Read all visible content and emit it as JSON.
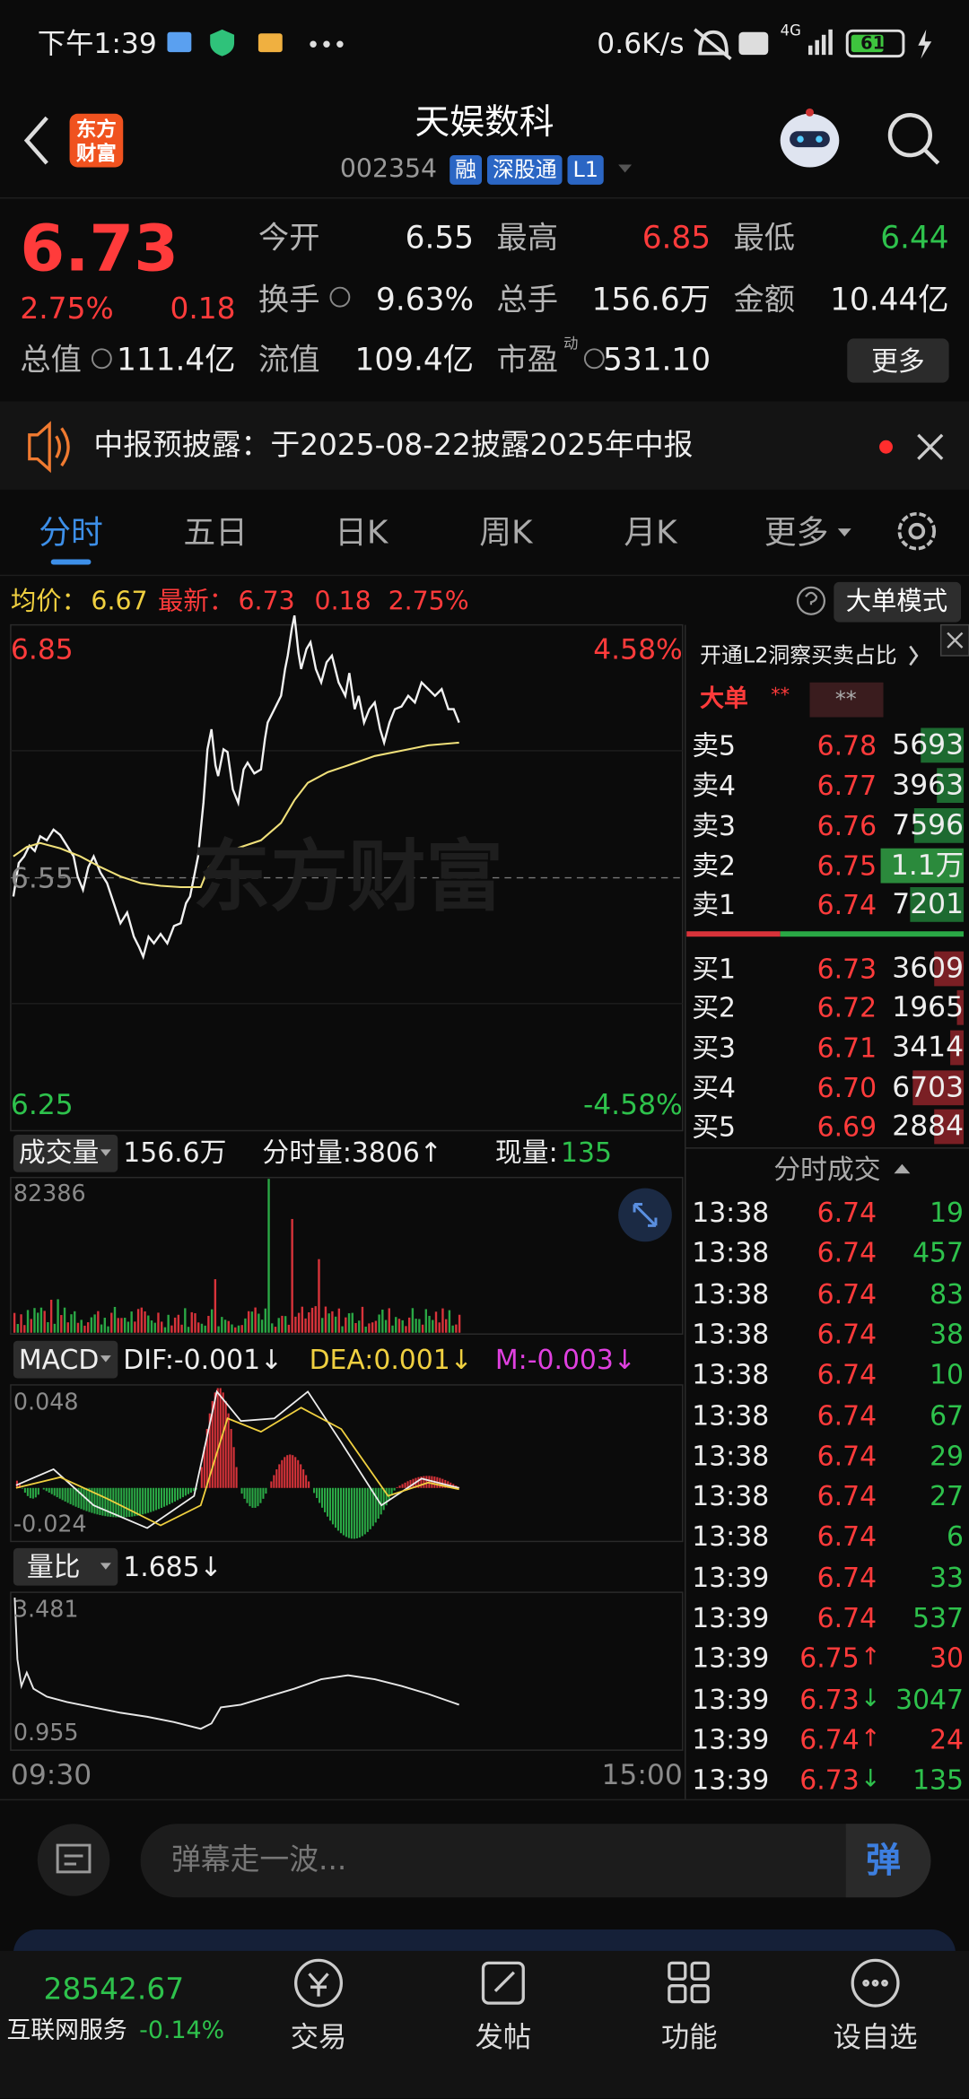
{
  "status_bar": {
    "time": "下午1:39",
    "net_speed": "0.6K/s",
    "network": "4G",
    "battery": "61"
  },
  "header": {
    "logo": [
      "东方",
      "财富"
    ],
    "title": "天娱数科",
    "code": "002354",
    "tags": [
      "融",
      "深股通",
      "L1"
    ]
  },
  "quote": {
    "price": "6.73",
    "change_pct": "2.75%",
    "change": "0.18",
    "fields": [
      {
        "label": "今开",
        "value": "6.55"
      },
      {
        "label": "最高",
        "value": "6.85",
        "trend": "up"
      },
      {
        "label": "最低",
        "value": "6.44",
        "trend": "down"
      },
      {
        "label": "换手",
        "value": "9.63%"
      },
      {
        "label": "总手",
        "value": "156.6万"
      },
      {
        "label": "金额",
        "value": "10.44亿"
      },
      {
        "label": "总值",
        "value": "111.4亿"
      },
      {
        "label": "流值",
        "value": "109.4亿"
      },
      {
        "label": "市盈",
        "value": "531.10",
        "note": "动"
      }
    ],
    "more": "更多"
  },
  "notice": "中报预披露：于2025-08-22披露2025年中报",
  "tabs": {
    "items": [
      "分时",
      "五日",
      "日K",
      "周K",
      "月K",
      "更多"
    ],
    "active": 0
  },
  "chart": {
    "avg_label": "均价：",
    "avg": "6.67",
    "latest_label": "最新：",
    "latest": "6.73",
    "change": "0.18",
    "change_pct": "2.75%",
    "mode_button": "大单模式",
    "y_high": "6.85",
    "pct_high": "4.58%",
    "y_mid": "6.55",
    "y_low": "6.25",
    "pct_low": "-4.58%",
    "watermark": "东方财富",
    "time_start": "09:30",
    "time_end": "15:00"
  },
  "volume": {
    "button": "成交量",
    "total": "156.6万",
    "tick_volume": "分时量:3806↑",
    "current_label": "现量:",
    "current": "135",
    "max": "82386"
  },
  "macd": {
    "button": "MACD",
    "dif": "DIF:-0.001↓",
    "dea": "DEA:0.001↓",
    "m": "M:-0.003↓",
    "max": "0.048",
    "min": "-0.024"
  },
  "volume_ratio": {
    "button": "量比",
    "value": "1.685↓",
    "max": "3.481",
    "min": "0.955"
  },
  "order_book": {
    "promo": "开通L2洞察买卖占比",
    "big_order": "大单",
    "big_order_mask": "**",
    "big_order_mask_2": "**",
    "asks": [
      {
        "label": "卖5",
        "price": "6.78",
        "volume": "5693"
      },
      {
        "label": "卖4",
        "price": "6.77",
        "volume": "3963"
      },
      {
        "label": "卖3",
        "price": "6.76",
        "volume": "7596"
      },
      {
        "label": "卖2",
        "price": "6.75",
        "volume": "1.1万"
      },
      {
        "label": "卖1",
        "price": "6.74",
        "volume": "7201"
      }
    ],
    "bids": [
      {
        "label": "买1",
        "price": "6.73",
        "volume": "3609"
      },
      {
        "label": "买2",
        "price": "6.72",
        "volume": "1965"
      },
      {
        "label": "买3",
        "price": "6.71",
        "volume": "3414"
      },
      {
        "label": "买4",
        "price": "6.70",
        "volume": "6703"
      },
      {
        "label": "买5",
        "price": "6.69",
        "volume": "2884"
      }
    ]
  },
  "trades": {
    "title": "分时成交",
    "rows": [
      {
        "time": "13:38",
        "price": "6.74",
        "volume": "19",
        "side": "sell"
      },
      {
        "time": "13:38",
        "price": "6.74",
        "volume": "457",
        "side": "sell"
      },
      {
        "time": "13:38",
        "price": "6.74",
        "volume": "83",
        "side": "sell"
      },
      {
        "time": "13:38",
        "price": "6.74",
        "volume": "38",
        "side": "sell"
      },
      {
        "time": "13:38",
        "price": "6.74",
        "volume": "10",
        "side": "sell"
      },
      {
        "time": "13:38",
        "price": "6.74",
        "volume": "67",
        "side": "sell"
      },
      {
        "time": "13:38",
        "price": "6.74",
        "volume": "29",
        "side": "sell"
      },
      {
        "time": "13:38",
        "price": "6.74",
        "volume": "27",
        "side": "sell"
      },
      {
        "time": "13:38",
        "price": "6.74",
        "volume": "6",
        "side": "sell"
      },
      {
        "time": "13:39",
        "price": "6.74",
        "volume": "33",
        "side": "sell"
      },
      {
        "time": "13:39",
        "price": "6.74",
        "volume": "537",
        "side": "sell"
      },
      {
        "time": "13:39",
        "price": "6.75",
        "arrow": "↑",
        "volume": "30",
        "side": "buy"
      },
      {
        "time": "13:39",
        "price": "6.73",
        "arrow": "↓",
        "volume": "3047",
        "side": "sell"
      },
      {
        "time": "13:39",
        "price": "6.74",
        "arrow": "↑",
        "volume": "24",
        "side": "buy"
      },
      {
        "time": "13:39",
        "price": "6.73",
        "arrow": "↓",
        "volume": "135",
        "side": "sell"
      }
    ]
  },
  "comment_bar": {
    "placeholder": "弹幕走一波...",
    "button": "弹"
  },
  "bottom_nav": {
    "index_value": "28542.67",
    "index_name": "互联网服务",
    "index_change": "-0.14%",
    "items": [
      "交易",
      "发帖",
      "功能",
      "设自选"
    ]
  }
}
